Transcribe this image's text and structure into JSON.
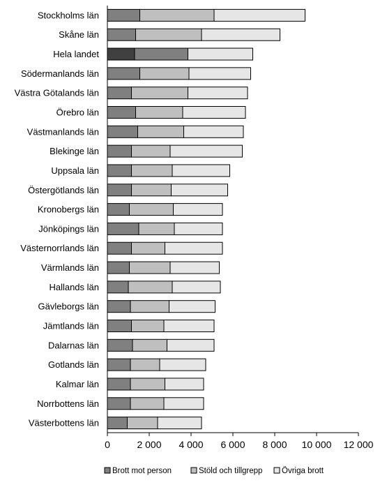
{
  "chart_data": {
    "type": "bar",
    "orientation": "horizontal",
    "stacked": true,
    "categories": [
      "Stockholms län",
      "Skåne län",
      "Hela landet",
      "Södermanlands län",
      "Västra Götalands län",
      "Örebro län",
      "Västmanlands län",
      "Blekinge län",
      "Uppsala län",
      "Östergötlands  län",
      "Kronobergs län",
      "Jönköpings län",
      "Västernorrlands län",
      "Värmlands län",
      "Hallands län",
      "Gävleborgs län",
      "Jämtlands län",
      "Dalarnas län",
      "Gotlands län",
      "Kalmar län",
      "Norrbottens län",
      "Västerbottens län"
    ],
    "series": [
      {
        "name": "Brott mot person",
        "color": "#808080",
        "values": [
          1550,
          1350,
          1300,
          1550,
          1150,
          1350,
          1450,
          1150,
          1150,
          1150,
          1050,
          1500,
          1150,
          1050,
          1000,
          1100,
          1150,
          1200,
          1100,
          1100,
          1100,
          950
        ]
      },
      {
        "name": "Stöld och tillgrepp",
        "color": "#bfbfbf",
        "values": [
          3550,
          3150,
          2550,
          2350,
          2700,
          2250,
          2200,
          1850,
          1950,
          1900,
          2100,
          1700,
          1600,
          1950,
          2100,
          1850,
          1550,
          1650,
          1400,
          1650,
          1600,
          1450
        ]
      },
      {
        "name": "Övriga brott",
        "color": "#e6e6e6",
        "values": [
          4350,
          3750,
          3100,
          2950,
          2850,
          3000,
          2850,
          3450,
          2750,
          2700,
          2350,
          2300,
          2750,
          2350,
          2300,
          2200,
          2400,
          2250,
          2200,
          1850,
          1900,
          2100
        ]
      }
    ],
    "highlight": {
      "category": "Hela landet",
      "colors": [
        "#404040",
        "#808080",
        "#e6e6e6"
      ]
    },
    "xlim": [
      0,
      12000
    ],
    "xticks": [
      0,
      2000,
      4000,
      6000,
      8000,
      10000,
      12000
    ],
    "xtick_labels": [
      "0",
      "2 000",
      "4 000",
      "6 000",
      "8 000",
      "10 000",
      "12 000"
    ],
    "xlabel": "",
    "ylabel": "",
    "title": "",
    "grid": false,
    "legend_position": "bottom"
  }
}
